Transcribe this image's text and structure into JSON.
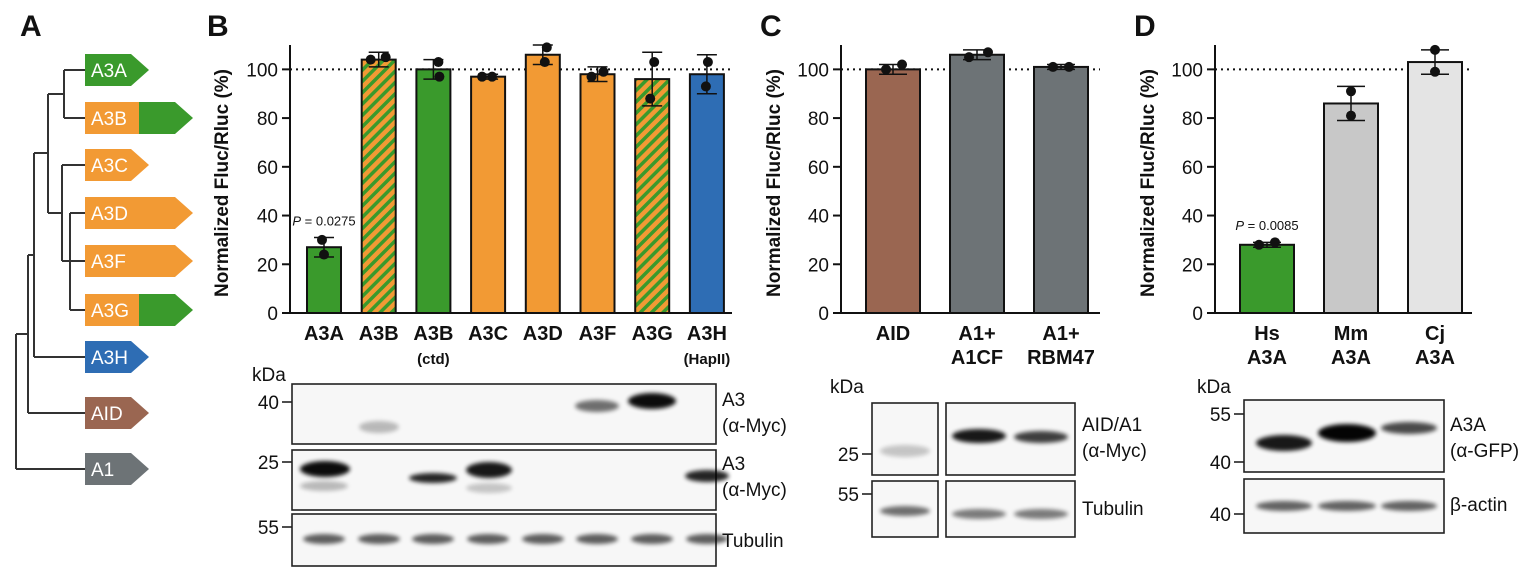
{
  "panels": {
    "a": {
      "letter": "A"
    },
    "b": {
      "letter": "B"
    },
    "c": {
      "letter": "C"
    },
    "d": {
      "letter": "D"
    }
  },
  "colors": {
    "green": "#3a9a2c",
    "orange": "#f29a34",
    "blue": "#2e6db4",
    "brown": "#9a6651",
    "gray": "#6d7376",
    "lightgray1": "#c8c8c8",
    "lightgray2": "#e4e4e4",
    "refline": "#111111"
  },
  "tree": {
    "labels": [
      {
        "text": "A3A",
        "fill": "green"
      },
      {
        "text": "A3B",
        "fill": "orange-green"
      },
      {
        "text": "A3C",
        "fill": "orange"
      },
      {
        "text": "A3D",
        "fill": "orange"
      },
      {
        "text": "A3F",
        "fill": "orange"
      },
      {
        "text": "A3G",
        "fill": "orange-green"
      },
      {
        "text": "A3H",
        "fill": "blue"
      },
      {
        "text": "AID",
        "fill": "brown"
      },
      {
        "text": "A1",
        "fill": "gray"
      }
    ]
  },
  "chart_data": [
    {
      "type": "bar",
      "panel": "B",
      "ylabel": "Normalized Fluc/Rluc (%)",
      "ylim": [
        0,
        110
      ],
      "yticks": [
        0,
        20,
        40,
        60,
        80,
        100
      ],
      "reference_line": 100,
      "categories": [
        "A3A",
        "A3B",
        "A3B",
        "A3C",
        "A3D",
        "A3F",
        "A3G",
        "A3H"
      ],
      "sublabels": [
        "",
        "",
        "(ctd)",
        "",
        "",
        "",
        "",
        "(HapII)"
      ],
      "values": [
        27,
        104,
        100,
        97,
        106,
        98,
        96,
        98
      ],
      "error": [
        4,
        3,
        4,
        1,
        4,
        3,
        11,
        8
      ],
      "points": [
        [
          30,
          24
        ],
        [
          104,
          105
        ],
        [
          103,
          97
        ],
        [
          97,
          97
        ],
        [
          109,
          103
        ],
        [
          97,
          99
        ],
        [
          103,
          88
        ],
        [
          103,
          93
        ]
      ],
      "bar_colors": [
        "green",
        "orange-green",
        "green",
        "orange",
        "orange",
        "orange",
        "orange-green",
        "blue"
      ],
      "annotation": {
        "text": "P = 0.0275",
        "p": "P",
        "rest": " = 0.0275",
        "category": "A3A",
        "y": 36
      },
      "blots": {
        "kda_label": "kDa",
        "rows": [
          {
            "marker": "40",
            "label1": "A3",
            "label2": "(α-Myc)"
          },
          {
            "marker": "25",
            "label1": "A3",
            "label2": "(α-Myc)"
          },
          {
            "marker": "55",
            "label1": "Tubulin",
            "label2": ""
          }
        ]
      }
    },
    {
      "type": "bar",
      "panel": "C",
      "ylabel": "Normalized Fluc/Rluc (%)",
      "ylim": [
        0,
        110
      ],
      "yticks": [
        0,
        20,
        40,
        60,
        80,
        100
      ],
      "reference_line": 100,
      "categories": [
        "AID",
        "A1+",
        "A1+"
      ],
      "sublabels": [
        "",
        "A1CF",
        "RBM47"
      ],
      "values": [
        100,
        106,
        101
      ],
      "error": [
        2,
        2,
        1
      ],
      "points": [
        [
          100,
          102
        ],
        [
          105,
          107
        ],
        [
          101,
          101
        ]
      ],
      "bar_colors": [
        "brown",
        "gray",
        "gray"
      ],
      "blots": {
        "kda_label": "kDa",
        "rows": [
          {
            "marker": "25",
            "label1": "AID/A1",
            "label2": "(α-Myc)"
          },
          {
            "marker": "55",
            "label1": "Tubulin",
            "label2": ""
          }
        ]
      }
    },
    {
      "type": "bar",
      "panel": "D",
      "ylabel": "Normalized Fluc/Rluc (%)",
      "ylim": [
        0,
        110
      ],
      "yticks": [
        0,
        20,
        40,
        60,
        80,
        100
      ],
      "reference_line": 100,
      "categories": [
        "Hs",
        "Mm",
        "Cj"
      ],
      "sublabels": [
        "A3A",
        "A3A",
        "A3A"
      ],
      "values": [
        28,
        86,
        103
      ],
      "error": [
        1,
        7,
        5
      ],
      "points": [
        [
          28,
          29
        ],
        [
          81,
          91
        ],
        [
          99,
          108
        ]
      ],
      "bar_colors": [
        "green",
        "lightgray1",
        "lightgray2"
      ],
      "annotation": {
        "text": "P = 0.0085",
        "p": "P",
        "rest": " = 0.0085",
        "category": "Hs",
        "y": 34
      },
      "blots": {
        "kda_label": "kDa",
        "rows": [
          {
            "marker_top": "55",
            "marker_bottom": "40",
            "label1": "A3A",
            "label2": "(α-GFP)"
          },
          {
            "marker": "40",
            "label1": "β-actin",
            "label2": ""
          }
        ]
      }
    }
  ]
}
